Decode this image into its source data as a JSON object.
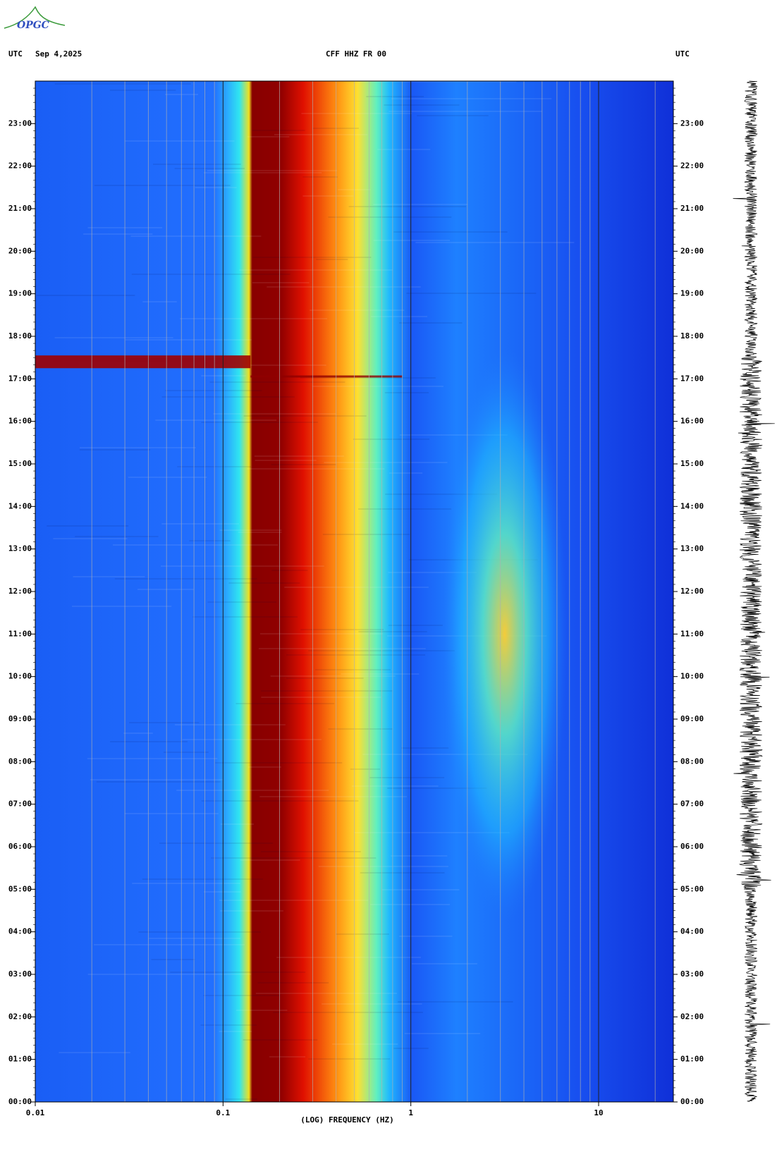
{
  "logo": "OPGC",
  "header": {
    "left_zone": "UTC",
    "date": "Sep 4,2025",
    "station": "CFF HHZ FR 00",
    "right_zone": "UTC"
  },
  "chart_data": {
    "type": "spectrogram",
    "x_label": "(LOG) FREQUENCY (HZ)",
    "log_x": true,
    "xlim": [
      0.01,
      25
    ],
    "xticks": [
      0.01,
      0.1,
      1,
      10
    ],
    "ylim": [
      0,
      24
    ],
    "yticks": [
      {
        "value": 0,
        "label": "00:00"
      },
      {
        "value": 1,
        "label": "01:00"
      },
      {
        "value": 2,
        "label": "02:00"
      },
      {
        "value": 3,
        "label": "03:00"
      },
      {
        "value": 4,
        "label": "04:00"
      },
      {
        "value": 5,
        "label": "05:00"
      },
      {
        "value": 6,
        "label": "06:00"
      },
      {
        "value": 7,
        "label": "07:00"
      },
      {
        "value": 8,
        "label": "08:00"
      },
      {
        "value": 9,
        "label": "09:00"
      },
      {
        "value": 10,
        "label": "10:00"
      },
      {
        "value": 11,
        "label": "11:00"
      },
      {
        "value": 12,
        "label": "12:00"
      },
      {
        "value": 13,
        "label": "13:00"
      },
      {
        "value": 14,
        "label": "14:00"
      },
      {
        "value": 15,
        "label": "15:00"
      },
      {
        "value": 16,
        "label": "16:00"
      },
      {
        "value": 17,
        "label": "17:00"
      },
      {
        "value": 18,
        "label": "18:00"
      },
      {
        "value": 19,
        "label": "19:00"
      },
      {
        "value": 20,
        "label": "20:00"
      },
      {
        "value": 21,
        "label": "21:00"
      },
      {
        "value": 22,
        "label": "22:00"
      },
      {
        "value": 23,
        "label": "23:00"
      }
    ]
  }
}
